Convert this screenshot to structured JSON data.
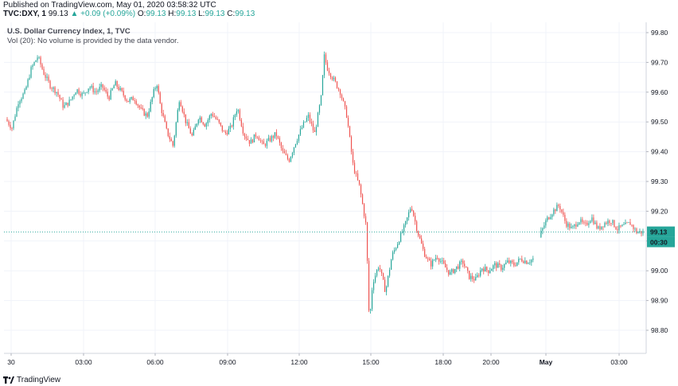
{
  "header": {
    "published": "Published on TradingView.com, May 01, 2020 03:58:32 UTC",
    "symbol": "TVC:DXY, 1",
    "last": "99.13",
    "change": "▲ +0.09 (+0.09%)",
    "o_label": "O:",
    "o_value": "99.13",
    "h_label": "H:",
    "h_value": "99.13",
    "l_label": "L:",
    "l_value": "99.13",
    "c_label": "C:",
    "c_value": "99.13"
  },
  "legend": {
    "title": "U.S. Dollar Currency Index, 1, TVC",
    "volume_note": "Vol (20): No volume is provided by the data vendor."
  },
  "footer": {
    "brand": "TradingView"
  },
  "colors": {
    "up": "#26a69a",
    "down": "#ef5350",
    "grid": "#f0f3fa",
    "price_line": "#26a69a",
    "icon": "tradingview-logo-icon"
  },
  "chart_data": {
    "type": "candlestick",
    "title": "U.S. Dollar Currency Index, 1, TVC",
    "ylim": [
      98.72,
      99.87
    ],
    "yticks": [
      "99.80",
      "99.70",
      "99.60",
      "99.50",
      "99.40",
      "99.30",
      "99.20",
      "99.10",
      "99.00",
      "98.90",
      "98.80"
    ],
    "xticks": [
      "30",
      "03:00",
      "06:00",
      "09:00",
      "12:00",
      "15:00",
      "18:00",
      "20:00",
      "May",
      "03:00"
    ],
    "last_price": "99.13",
    "countdown": "00:30",
    "grid": true,
    "price_path": [
      [
        0,
        99.51
      ],
      [
        2,
        99.48
      ],
      [
        4,
        99.57
      ],
      [
        6,
        99.6
      ],
      [
        8,
        99.68
      ],
      [
        10,
        99.72
      ],
      [
        12,
        99.66
      ],
      [
        14,
        99.62
      ],
      [
        16,
        99.6
      ],
      [
        18,
        99.55
      ],
      [
        20,
        99.57
      ],
      [
        22,
        99.61
      ],
      [
        24,
        99.59
      ],
      [
        26,
        99.62
      ],
      [
        28,
        99.6
      ],
      [
        30,
        99.62
      ],
      [
        32,
        99.58
      ],
      [
        34,
        99.63
      ],
      [
        36,
        99.6
      ],
      [
        38,
        99.57
      ],
      [
        40,
        99.58
      ],
      [
        42,
        99.54
      ],
      [
        44,
        99.52
      ],
      [
        46,
        99.6
      ],
      [
        47,
        99.63
      ],
      [
        48,
        99.56
      ],
      [
        50,
        99.47
      ],
      [
        52,
        99.42
      ],
      [
        54,
        99.58
      ],
      [
        56,
        99.5
      ],
      [
        58,
        99.45
      ],
      [
        60,
        99.52
      ],
      [
        62,
        99.49
      ],
      [
        64,
        99.53
      ],
      [
        66,
        99.5
      ],
      [
        68,
        99.46
      ],
      [
        70,
        99.48
      ],
      [
        72,
        99.55
      ],
      [
        74,
        99.46
      ],
      [
        76,
        99.43
      ],
      [
        78,
        99.46
      ],
      [
        80,
        99.42
      ],
      [
        82,
        99.44
      ],
      [
        84,
        99.46
      ],
      [
        86,
        99.4
      ],
      [
        88,
        99.37
      ],
      [
        90,
        99.43
      ],
      [
        92,
        99.48
      ],
      [
        94,
        99.52
      ],
      [
        96,
        99.46
      ],
      [
        98,
        99.58
      ],
      [
        99,
        99.72
      ],
      [
        100,
        99.68
      ],
      [
        102,
        99.64
      ],
      [
        104,
        99.6
      ],
      [
        106,
        99.52
      ],
      [
        108,
        99.35
      ],
      [
        110,
        99.28
      ],
      [
        112,
        99.15
      ],
      [
        113,
        98.82
      ],
      [
        114,
        98.96
      ],
      [
        116,
        99.02
      ],
      [
        118,
        98.93
      ],
      [
        120,
        99.05
      ],
      [
        122,
        99.1
      ],
      [
        124,
        99.15
      ],
      [
        126,
        99.22
      ],
      [
        128,
        99.13
      ],
      [
        130,
        99.06
      ],
      [
        132,
        99.02
      ],
      [
        134,
        99.05
      ],
      [
        136,
        99.02
      ],
      [
        138,
        98.99
      ],
      [
        140,
        99.01
      ],
      [
        142,
        99.03
      ],
      [
        144,
        98.98
      ],
      [
        146,
        98.97
      ],
      [
        148,
        99.01
      ],
      [
        150,
        99.0
      ],
      [
        152,
        99.02
      ],
      [
        154,
        99.01
      ],
      [
        156,
        99.03
      ],
      [
        158,
        99.02
      ],
      [
        160,
        99.04
      ],
      [
        162,
        99.03
      ],
      [
        164,
        99.04
      ],
      [
        166,
        99.12
      ],
      [
        168,
        99.17
      ],
      [
        170,
        99.2
      ],
      [
        172,
        99.22
      ],
      [
        174,
        99.16
      ],
      [
        176,
        99.14
      ],
      [
        178,
        99.17
      ],
      [
        180,
        99.15
      ],
      [
        182,
        99.18
      ],
      [
        184,
        99.14
      ],
      [
        186,
        99.16
      ],
      [
        188,
        99.17
      ],
      [
        190,
        99.14
      ],
      [
        192,
        99.15
      ],
      [
        194,
        99.16
      ],
      [
        196,
        99.13
      ],
      [
        198,
        99.13
      ]
    ]
  }
}
